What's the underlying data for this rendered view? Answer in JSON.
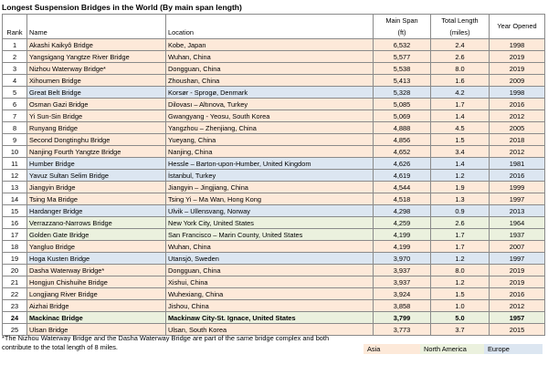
{
  "title": "Longest Suspension Bridges in the World (By main span length)",
  "colors": {
    "asia": "#fde9d9",
    "north_america": "#ebf1de",
    "europe": "#dce6f1",
    "white": "#ffffff"
  },
  "table": {
    "headers": {
      "rank": "Rank",
      "name": "Name",
      "location": "Location",
      "main_span_1": "Main Span",
      "main_span_2": "(ft)",
      "total_length_1": "Total Length",
      "total_length_2": "(miles)",
      "year_opened": "Year Opened"
    },
    "rows": [
      {
        "rank": "1",
        "name": "Akashi Kaikyô Bridge",
        "location": "Kobe, Japan",
        "main_span": "6,532",
        "total_length": "2.4",
        "year": "1998",
        "region": "asia"
      },
      {
        "rank": "2",
        "name": "Yangsigang Yangtze River Bridge",
        "location": "Wuhan, China",
        "main_span": "5,577",
        "total_length": "2.6",
        "year": "2019",
        "region": "asia"
      },
      {
        "rank": "3",
        "name": "Nizhou Waterway Bridge*",
        "location": "Dongguan, China",
        "main_span": "5,538",
        "total_length": "8.0",
        "year": "2019",
        "region": "asia"
      },
      {
        "rank": "4",
        "name": "Xihoumen Bridge",
        "location": "Zhoushan, China",
        "main_span": "5,413",
        "total_length": "1.6",
        "year": "2009",
        "region": "asia"
      },
      {
        "rank": "5",
        "name": "Great Belt Bridge",
        "location": "Korsør - Sprogø, Denmark",
        "main_span": "5,328",
        "total_length": "4.2",
        "year": "1998",
        "region": "europe"
      },
      {
        "rank": "6",
        "name": "Osman Gazi Bridge",
        "location": "Dilovası – Altınova, Turkey",
        "main_span": "5,085",
        "total_length": "1.7",
        "year": "2016",
        "region": "asia"
      },
      {
        "rank": "7",
        "name": "Yi Sun-Sin Bridge",
        "location": "Gwangyang - Yeosu, South Korea",
        "main_span": "5,069",
        "total_length": "1.4",
        "year": "2012",
        "region": "asia"
      },
      {
        "rank": "8",
        "name": "Runyang Bridge",
        "location": "Yangzhou – Zhenjiang, China",
        "main_span": "4,888",
        "total_length": "4.5",
        "year": "2005",
        "region": "asia"
      },
      {
        "rank": "9",
        "name": "Second Dongtinghu Bridge",
        "location": "Yueyang, China",
        "main_span": "4,856",
        "total_length": "1.5",
        "year": "2018",
        "region": "asia"
      },
      {
        "rank": "10",
        "name": "Nanjing Fourth Yangtze Bridge",
        "location": "Nanjing, China",
        "main_span": "4,652",
        "total_length": "3.4",
        "year": "2012",
        "region": "asia"
      },
      {
        "rank": "11",
        "name": "Humber Bridge",
        "location": "Hessle – Barton-upon-Humber, United Kingdom",
        "main_span": "4,626",
        "total_length": "1.4",
        "year": "1981",
        "region": "europe"
      },
      {
        "rank": "12",
        "name": "Yavuz Sultan Selim Bridge",
        "location": "İstanbul, Turkey",
        "main_span": "4,619",
        "total_length": "1.2",
        "year": "2016",
        "region": "europe"
      },
      {
        "rank": "13",
        "name": "Jiangyin Bridge",
        "location": "Jiangyin – Jingjiang, China",
        "main_span": "4,544",
        "total_length": "1.9",
        "year": "1999",
        "region": "asia"
      },
      {
        "rank": "14",
        "name": "Tsing Ma Bridge",
        "location": "Tsing Yi – Ma Wan, Hong Kong",
        "main_span": "4,518",
        "total_length": "1.3",
        "year": "1997",
        "region": "asia"
      },
      {
        "rank": "15",
        "name": "Hardanger Bridge",
        "location": "Ulvik – Ullensvang, Norway",
        "main_span": "4,298",
        "total_length": "0.9",
        "year": "2013",
        "region": "europe"
      },
      {
        "rank": "16",
        "name": "Verrazzano-Narrows Bridge",
        "location": "New York City, United States",
        "main_span": "4,259",
        "total_length": "2.6",
        "year": "1964",
        "region": "north_america"
      },
      {
        "rank": "17",
        "name": "Golden Gate Bridge",
        "location": "San Francisco – Marin County, United States",
        "main_span": "4,199",
        "total_length": "1.7",
        "year": "1937",
        "region": "north_america"
      },
      {
        "rank": "18",
        "name": "Yangluo Bridge",
        "location": "Wuhan, China",
        "main_span": "4,199",
        "total_length": "1.7",
        "year": "2007",
        "region": "asia"
      },
      {
        "rank": "19",
        "name": "Hoga Kusten Bridge",
        "location": "Utansjö, Sweden",
        "main_span": "3,970",
        "total_length": "1.2",
        "year": "1997",
        "region": "europe"
      },
      {
        "rank": "20",
        "name": "Dasha Waterway Bridge*",
        "location": "Dongguan, China",
        "main_span": "3,937",
        "total_length": "8.0",
        "year": "2019",
        "region": "asia"
      },
      {
        "rank": "21",
        "name": "Hongjun Chishuihe Bridge",
        "location": "Xishui, China",
        "main_span": "3,937",
        "total_length": "1.2",
        "year": "2019",
        "region": "asia"
      },
      {
        "rank": "22",
        "name": "Longjiang River Bridge",
        "location": "Wuhexiang, China",
        "main_span": "3,924",
        "total_length": "1.5",
        "year": "2016",
        "region": "asia"
      },
      {
        "rank": "23",
        "name": "Aizhai Bridge",
        "location": "Jishou, China",
        "main_span": "3,858",
        "total_length": "1.0",
        "year": "2012",
        "region": "asia"
      },
      {
        "rank": "24",
        "name": "Mackinac Bridge",
        "location": "Mackinaw City-St. Ignace, United States",
        "main_span": "3,799",
        "total_length": "5.0",
        "year": "1957",
        "region": "north_america",
        "bold": true
      },
      {
        "rank": "25",
        "name": "Ulsan Bridge",
        "location": "Ulsan, South Korea",
        "main_span": "3,773",
        "total_length": "3.7",
        "year": "2015",
        "region": "asia"
      }
    ]
  },
  "footnote": {
    "line1": "*The Nizhou Waterway Bridge and the Dasha Waterway Bridge are part of the same bridge complex and both",
    "line2": "contribute to the total length of 8 miles."
  },
  "legend": {
    "asia": "Asia",
    "north_america": "North America",
    "europe": "Europe"
  }
}
